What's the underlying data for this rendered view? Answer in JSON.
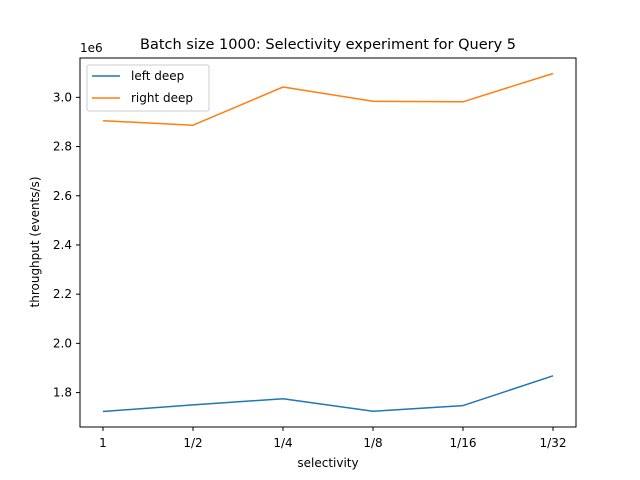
{
  "chart_data": {
    "type": "line",
    "title": "Batch size 1000: Selectivity experiment for Query 5",
    "xlabel": "selectivity",
    "ylabel": "throughput (events/s)",
    "y_offset_label": "1e6",
    "categories": [
      "1",
      "1/2",
      "1/4",
      "1/8",
      "1/16",
      "1/32"
    ],
    "y_ticks": [
      "1.8",
      "2.0",
      "2.2",
      "2.4",
      "2.6",
      "2.8",
      "3.0"
    ],
    "ylim": [
      1.66,
      3.16
    ],
    "y_units": "millions of events/s",
    "grid": false,
    "legend_position": "top-left",
    "series": [
      {
        "name": "left deep",
        "color": "#1f77b4",
        "values": [
          1.723,
          1.75,
          1.775,
          1.724,
          1.747,
          1.868
        ]
      },
      {
        "name": "right deep",
        "color": "#ff7f0e",
        "values": [
          2.905,
          2.887,
          3.042,
          2.984,
          2.982,
          3.097
        ]
      }
    ]
  }
}
